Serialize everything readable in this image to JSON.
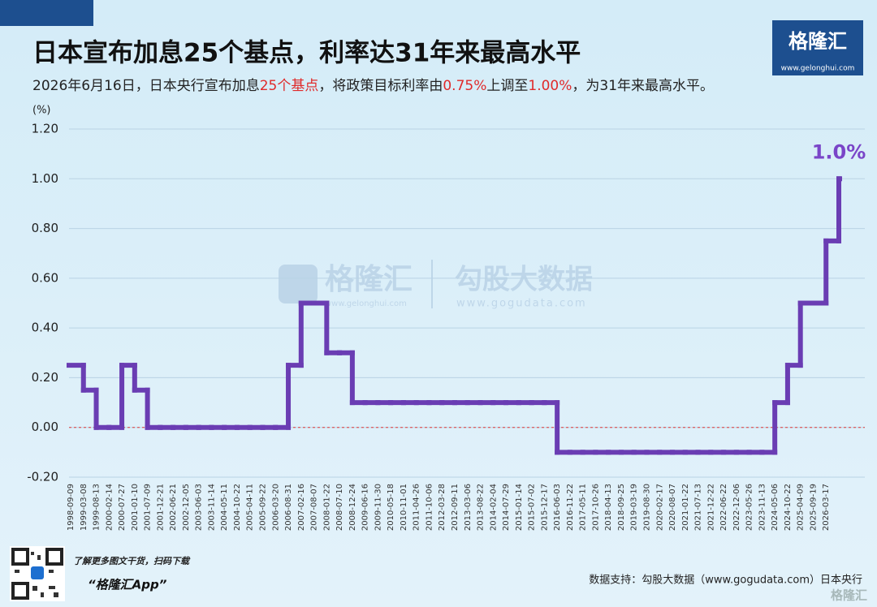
{
  "chart_data": {
    "type": "step-line",
    "title": "日本宣布加息25个基点，利率达31年来最高水平",
    "subtitle_parts": [
      {
        "text": "2026年6月16日，日本央行宣布加息",
        "color": "#222222"
      },
      {
        "text": "25个基点",
        "color": "#e02a2a"
      },
      {
        "text": "，将政策目标利率由",
        "color": "#222222"
      },
      {
        "text": "0.75%",
        "color": "#e02a2a"
      },
      {
        "text": "上调至",
        "color": "#222222"
      },
      {
        "text": "1.00%",
        "color": "#e02a2a"
      },
      {
        "text": "，为31年来最高水平。",
        "color": "#222222"
      }
    ],
    "y_unit": "(%)",
    "annotation": "1.0%",
    "categories": [
      "1998-09-09",
      "1999-03-08",
      "1999-08-13",
      "2000-02-14",
      "2000-07-27",
      "2001-01-10",
      "2001-07-09",
      "2001-12-21",
      "2002-06-21",
      "2002-12-05",
      "2003-06-03",
      "2003-11-14",
      "2004-05-11",
      "2004-10-22",
      "2005-04-11",
      "2005-09-22",
      "2006-03-20",
      "2006-08-31",
      "2007-02-16",
      "2007-08-07",
      "2008-01-22",
      "2008-07-10",
      "2008-12-24",
      "2009-06-16",
      "2009-11-30",
      "2010-05-18",
      "2010-11-01",
      "2011-04-26",
      "2011-10-06",
      "2012-03-28",
      "2012-09-11",
      "2013-03-06",
      "2013-08-22",
      "2014-02-04",
      "2014-07-29",
      "2015-01-14",
      "2015-07-02",
      "2015-12-17",
      "2016-06-03",
      "2016-11-22",
      "2017-05-11",
      "2017-10-26",
      "2018-04-13",
      "2018-09-25",
      "2019-03-19",
      "2019-08-30",
      "2020-02-17",
      "2020-08-07",
      "2021-01-22",
      "2021-07-13",
      "2021-12-22",
      "2022-06-22",
      "2022-12-06",
      "2023-05-26",
      "2023-11-13",
      "2024-05-06",
      "2024-10-22",
      "2025-04-09",
      "2025-09-19",
      "2026-03-17",
      null
    ],
    "values": [
      0.25,
      0.15,
      0,
      0,
      0.25,
      0.15,
      0,
      0,
      0,
      0,
      0,
      0,
      0,
      0,
      0,
      0,
      0,
      0.25,
      0.5,
      0.5,
      0.3,
      0.3,
      0.1,
      0.1,
      0.1,
      0.1,
      0.1,
      0.1,
      0.1,
      0.1,
      0.1,
      0.1,
      0.1,
      0.1,
      0.1,
      0.1,
      0.1,
      0.1,
      -0.1,
      -0.1,
      -0.1,
      -0.1,
      -0.1,
      -0.1,
      -0.1,
      -0.1,
      -0.1,
      -0.1,
      -0.1,
      -0.1,
      -0.1,
      -0.1,
      -0.1,
      -0.1,
      -0.1,
      0.1,
      0.25,
      0.5,
      0.5,
      0.75,
      1.0
    ],
    "color": "#6a3db3",
    "annotation_color": "#7a45c8",
    "ylim": [
      -0.2,
      1.2
    ],
    "yticks": [
      {
        "value": -0.2,
        "label": "-0.20"
      },
      {
        "value": 0,
        "label": "0.00"
      },
      {
        "value": 0.2,
        "label": "0.20"
      },
      {
        "value": 0.4,
        "label": "0.40"
      },
      {
        "value": 0.6,
        "label": "0.60"
      },
      {
        "value": 0.8,
        "label": "0.80"
      },
      {
        "value": 1.0,
        "label": "1.00"
      },
      {
        "value": 1.2,
        "label": "1.20"
      }
    ],
    "grid": true,
    "reference_line": {
      "value": 0,
      "color": "#e03a3a"
    }
  },
  "branding": {
    "logo": "格隆汇",
    "logo_url": "www.gelonghui.com",
    "watermark_left": "格隆汇",
    "watermark_left_url": "www.gelonghui.com",
    "watermark_right": "勾股大数据",
    "watermark_right_url": "www.gogudata.com",
    "qr_caption": "了解更多图文干货，扫码下载",
    "app_name": "“格隆汇App”",
    "source": "数据支持：勾股大数据（www.gogudata.com）日本央行",
    "corner_mark": "格隆汇"
  }
}
